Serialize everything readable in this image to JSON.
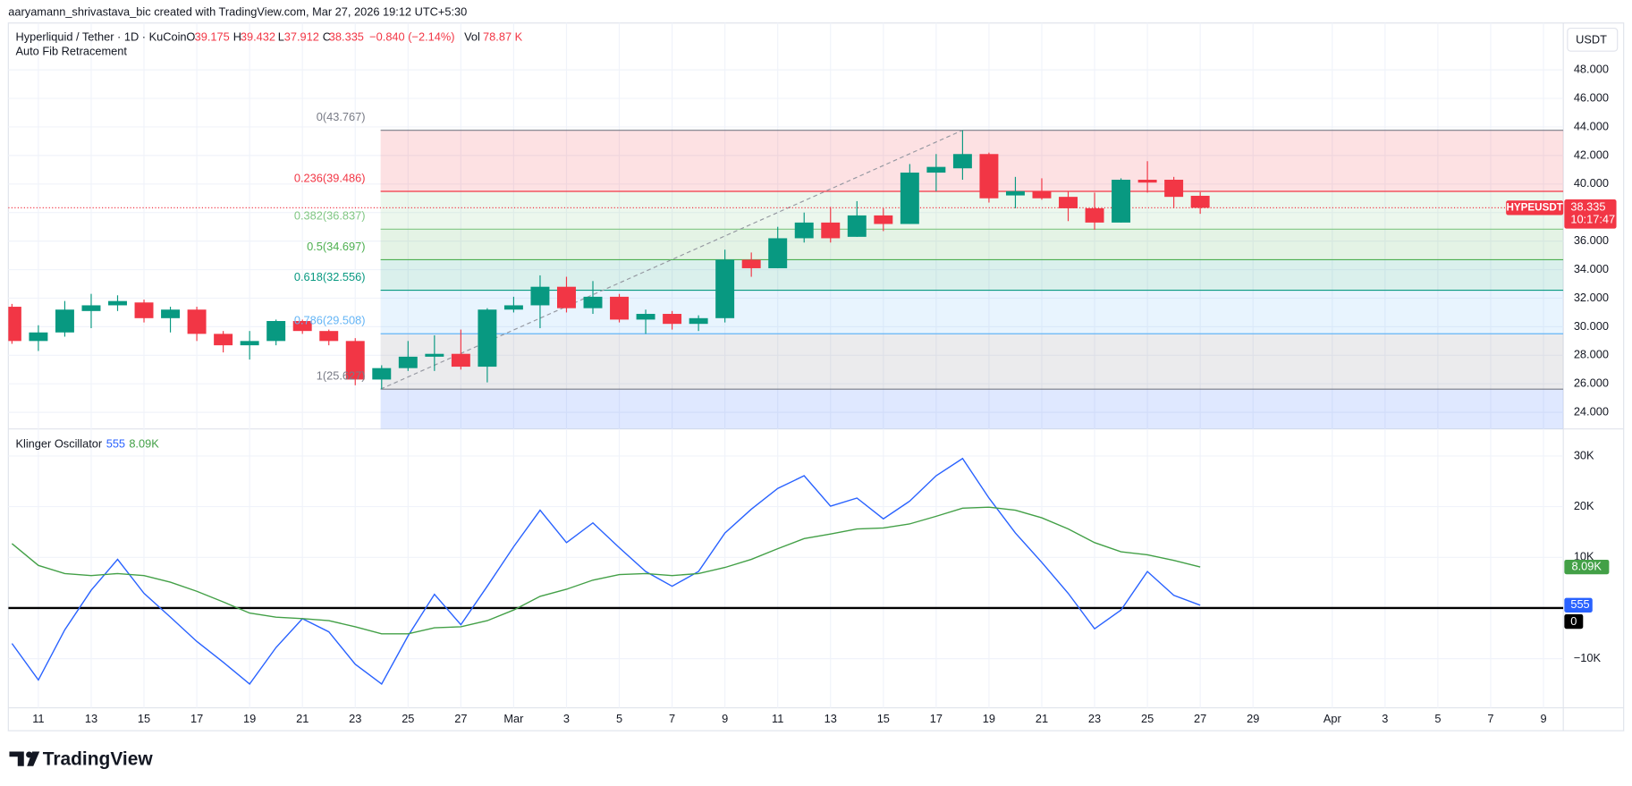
{
  "header": {
    "credit": "aaryamann_shrivastava_bic created with TradingView.com, Mar 27, 2026 19:12 UTC+5:30",
    "symbol": "Hyperliquid / Tether · 1D · KuCoin",
    "ohlc_letters": [
      "O",
      "H",
      "L",
      "C"
    ],
    "change": "−0.840 (−2.14%)",
    "volume_letter": "Vol",
    "volume": "78.87 K",
    "indicator": "Auto Fib Retracement",
    "currency": "USDT",
    "ticker": "HYPEUSDT",
    "countdown": "10:17:47"
  },
  "footer": {
    "brand": "TradingView"
  },
  "chart_data": [
    {
      "type": "candlestick",
      "categories": [
        null,
        "11",
        null,
        "13",
        null,
        "15",
        null,
        "17",
        null,
        "19",
        null,
        "21",
        null,
        "23",
        null,
        "25",
        null,
        "27",
        null,
        "Mar",
        null,
        "3",
        null,
        "5",
        null,
        "7",
        null,
        "9",
        null,
        "11",
        null,
        "13",
        null,
        "15",
        null,
        "17",
        null,
        "19",
        null,
        "21",
        null,
        "23",
        null,
        "25",
        null,
        "27",
        null,
        "29",
        null,
        null,
        "Apr",
        null,
        "3",
        null,
        "5",
        null,
        "7",
        null,
        "9"
      ],
      "open": [
        31.4,
        29.0,
        29.6,
        31.1,
        31.5,
        31.7,
        30.6,
        31.2,
        29.5,
        28.7,
        29.0,
        30.4,
        29.7,
        29.0,
        26.3,
        27.1,
        27.9,
        28.1,
        27.2,
        31.2,
        31.5,
        32.8,
        31.3,
        32.1,
        30.5,
        30.9,
        30.2,
        30.6,
        34.7,
        34.1,
        36.2,
        37.3,
        36.3,
        37.8,
        37.2,
        40.8,
        41.1,
        42.1,
        39.2,
        39.5,
        39.1,
        38.3,
        37.3,
        40.3,
        40.3,
        39.175,
        null,
        null,
        null,
        null,
        null,
        null,
        null,
        null,
        null,
        null,
        null,
        null,
        null
      ],
      "high": [
        31.6,
        30.1,
        31.8,
        32.3,
        32.2,
        31.9,
        31.4,
        31.4,
        29.7,
        29.7,
        30.5,
        30.5,
        29.8,
        29.2,
        27.3,
        29.0,
        29.4,
        29.8,
        31.3,
        32.1,
        33.6,
        33.5,
        33.2,
        32.3,
        31.2,
        31.1,
        30.8,
        35.4,
        35.2,
        37.0,
        38.0,
        38.4,
        38.8,
        38.3,
        41.4,
        42.1,
        43.767,
        42.2,
        40.5,
        40.4,
        39.5,
        39.4,
        40.4,
        41.6,
        40.5,
        39.432,
        null,
        null,
        null,
        null,
        null,
        null,
        null,
        null,
        null,
        null,
        null,
        null,
        null
      ],
      "low": [
        28.8,
        28.3,
        29.3,
        29.9,
        31.1,
        30.3,
        29.6,
        29.0,
        28.2,
        27.7,
        28.7,
        29.5,
        28.7,
        25.9,
        25.627,
        26.9,
        26.9,
        27.0,
        26.1,
        31.0,
        29.9,
        31.0,
        30.9,
        30.3,
        29.5,
        29.8,
        29.7,
        30.3,
        33.5,
        34.1,
        35.9,
        35.9,
        36.3,
        36.7,
        37.2,
        39.5,
        40.3,
        38.7,
        38.3,
        38.9,
        37.4,
        36.8,
        37.3,
        39.4,
        38.3,
        37.912,
        null,
        null,
        null,
        null,
        null,
        null,
        null,
        null,
        null,
        null,
        null,
        null,
        null
      ],
      "close": [
        29.0,
        29.6,
        31.2,
        31.5,
        31.8,
        30.6,
        31.2,
        29.5,
        28.7,
        29.0,
        30.4,
        29.7,
        29.0,
        26.3,
        27.1,
        27.9,
        28.1,
        27.2,
        31.2,
        31.5,
        32.8,
        31.3,
        32.1,
        30.5,
        30.9,
        30.2,
        30.6,
        34.7,
        34.1,
        36.2,
        37.3,
        36.2,
        37.8,
        37.2,
        40.8,
        41.2,
        42.1,
        39.0,
        39.5,
        39.0,
        38.3,
        37.3,
        40.3,
        40.1,
        39.1,
        38.335,
        null,
        null,
        null,
        null,
        null,
        null,
        null,
        null,
        null,
        null,
        null,
        null,
        null
      ],
      "up_color": "#089981",
      "down_color": "#f23645",
      "ylim": [
        22.84,
        49.97
      ],
      "yticks": [
        {
          "value": 24,
          "label": "24.000"
        },
        {
          "value": 26,
          "label": "26.000"
        },
        {
          "value": 28,
          "label": "28.000"
        },
        {
          "value": 30,
          "label": "30.000"
        },
        {
          "value": 32,
          "label": "32.000"
        },
        {
          "value": 34,
          "label": "34.000"
        },
        {
          "value": 36,
          "label": "36.000"
        },
        {
          "value": 38,
          "label": "38.000"
        },
        {
          "value": 40,
          "label": "40.000"
        },
        {
          "value": 42,
          "label": "42.000"
        },
        {
          "value": 44,
          "label": "44.000"
        },
        {
          "value": 46,
          "label": "46.000"
        },
        {
          "value": 48,
          "label": "48.000"
        }
      ],
      "grid": true,
      "fib_levels": [
        {
          "value": 43.767,
          "label": "0(43.767)",
          "color": "#787b86"
        },
        {
          "value": 39.486,
          "label": "0.236(39.486)",
          "color": "#f23645"
        },
        {
          "value": 36.837,
          "label": "0.382(36.837)",
          "color": "#81c784"
        },
        {
          "value": 34.697,
          "label": "0.5(34.697)",
          "color": "#4caf50"
        },
        {
          "value": 32.556,
          "label": "0.618(32.556)",
          "color": "#089981"
        },
        {
          "value": 29.508,
          "label": "0.786(29.508)",
          "color": "#64b5f6"
        },
        {
          "value": 25.627,
          "label": "1(25.627)",
          "color": "#787b86"
        }
      ]
    },
    {
      "type": "line",
      "title": "Klinger Oscillator",
      "series": [
        {
          "color": "#2962ff",
          "values": [
            -7000,
            -14200,
            -4300,
            3500,
            9600,
            2900,
            -1800,
            -6600,
            -10700,
            -15000,
            -7800,
            -2100,
            -4700,
            -11100,
            -15000,
            -5500,
            2700,
            -3300,
            4300,
            12100,
            19300,
            12900,
            16800,
            11900,
            7200,
            4300,
            7200,
            14800,
            19500,
            23600,
            26100,
            20100,
            21700,
            17600,
            21100,
            26100,
            29500,
            21700,
            14800,
            9000,
            2900,
            -4100,
            -400,
            7200,
            2500,
            555,
            null,
            null,
            null,
            null,
            null,
            null,
            null,
            null,
            null,
            null,
            null,
            null,
            null
          ]
        },
        {
          "color": "#43a047",
          "values": [
            12700,
            8400,
            6800,
            6400,
            6800,
            6400,
            5100,
            3300,
            1200,
            -1000,
            -1800,
            -2100,
            -2500,
            -3700,
            -5100,
            -5100,
            -3900,
            -3700,
            -2500,
            -400,
            2300,
            3700,
            5500,
            6600,
            6800,
            6400,
            6800,
            8000,
            9600,
            11700,
            13700,
            14600,
            15600,
            15800,
            16600,
            18100,
            19700,
            19900,
            19300,
            17800,
            15600,
            12900,
            11100,
            10500,
            9400,
            8090,
            null,
            null,
            null,
            null,
            null,
            null,
            null,
            null,
            null,
            null,
            null,
            null,
            null
          ],
          "last_label": "8.09K"
        }
      ],
      "ylim": [
        -19700,
        33700
      ],
      "yticks": [
        {
          "value": 30000,
          "label": "30K"
        },
        {
          "value": 20000,
          "label": "20K"
        },
        {
          "value": 10000,
          "label": "10K"
        },
        0,
        {
          "value": -10000,
          "label": "−10K"
        }
      ],
      "grid": true
    }
  ]
}
